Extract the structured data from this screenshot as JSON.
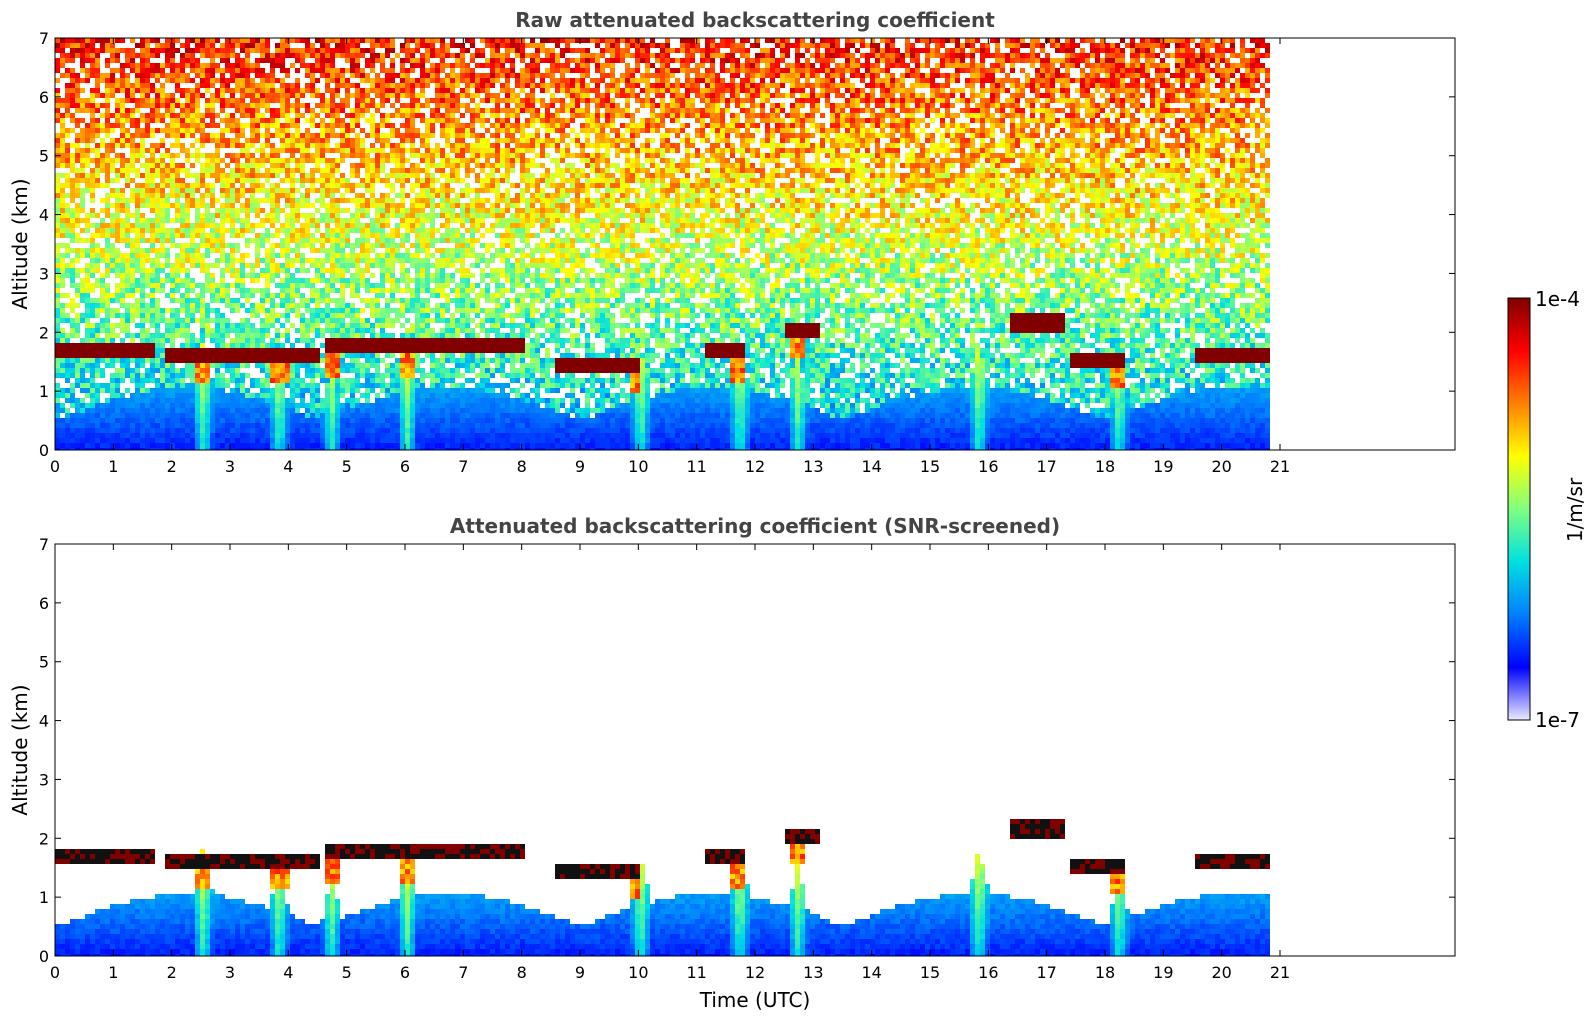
{
  "chart_data": [
    {
      "type": "heatmap",
      "title": "Raw attenuated backscattering coefficient",
      "xlabel": "",
      "ylabel": "Altitude (km)",
      "xlim": [
        0,
        24
      ],
      "ylim": [
        0,
        7
      ],
      "x_ticks": [
        "0",
        "1",
        "2",
        "3",
        "4",
        "5",
        "6",
        "7",
        "8",
        "9",
        "10",
        "11",
        "12",
        "13",
        "14",
        "15",
        "16",
        "17",
        "18",
        "19",
        "20",
        "21"
      ],
      "y_ticks": [
        "0",
        "1",
        "2",
        "3",
        "4",
        "5",
        "6",
        "7"
      ],
      "data_end_hour": 20.8,
      "cloud_layer": [
        {
          "x": [
            0.0,
            1.7
          ],
          "alt_km": 1.75
        },
        {
          "x": [
            1.8,
            4.5
          ],
          "alt_km": 1.65
        },
        {
          "x": [
            4.6,
            8.0
          ],
          "alt_km": 1.78
        },
        {
          "x": [
            8.5,
            10.0
          ],
          "alt_km": 1.5
        },
        {
          "x": [
            11.1,
            11.8
          ],
          "alt_km": 1.7
        },
        {
          "x": [
            12.5,
            13.1
          ],
          "alt_km": 2.1
        },
        {
          "x": [
            16.3,
            17.3
          ],
          "alt_km": 2.2
        },
        {
          "x": [
            17.4,
            18.3
          ],
          "alt_km": 1.6
        },
        {
          "x": [
            19.5,
            20.8
          ],
          "alt_km": 1.65
        }
      ],
      "boundary_layer_top_km": 1.1
    },
    {
      "type": "heatmap",
      "title": "Attenuated backscattering coefficient (SNR-screened)",
      "xlabel": "Time (UTC)",
      "ylabel": "Altitude (km)",
      "xlim": [
        0,
        24
      ],
      "ylim": [
        0,
        7
      ],
      "x_ticks": [
        "0",
        "1",
        "2",
        "3",
        "4",
        "5",
        "6",
        "7",
        "8",
        "9",
        "10",
        "11",
        "12",
        "13",
        "14",
        "15",
        "16",
        "17",
        "18",
        "19",
        "20",
        "21"
      ],
      "y_ticks": [
        "0",
        "1",
        "2",
        "3",
        "4",
        "5",
        "6",
        "7"
      ],
      "data_end_hour": 20.8
    }
  ],
  "colorbar": {
    "label": "1/m/sr",
    "max_label": "1e-4",
    "min_label": "1e-7",
    "scale": "log",
    "colormap": [
      "#eaeaff",
      "#0000ff",
      "#0080ff",
      "#00e0e0",
      "#80ff80",
      "#ffff00",
      "#ff8000",
      "#ff0000",
      "#800000"
    ]
  }
}
